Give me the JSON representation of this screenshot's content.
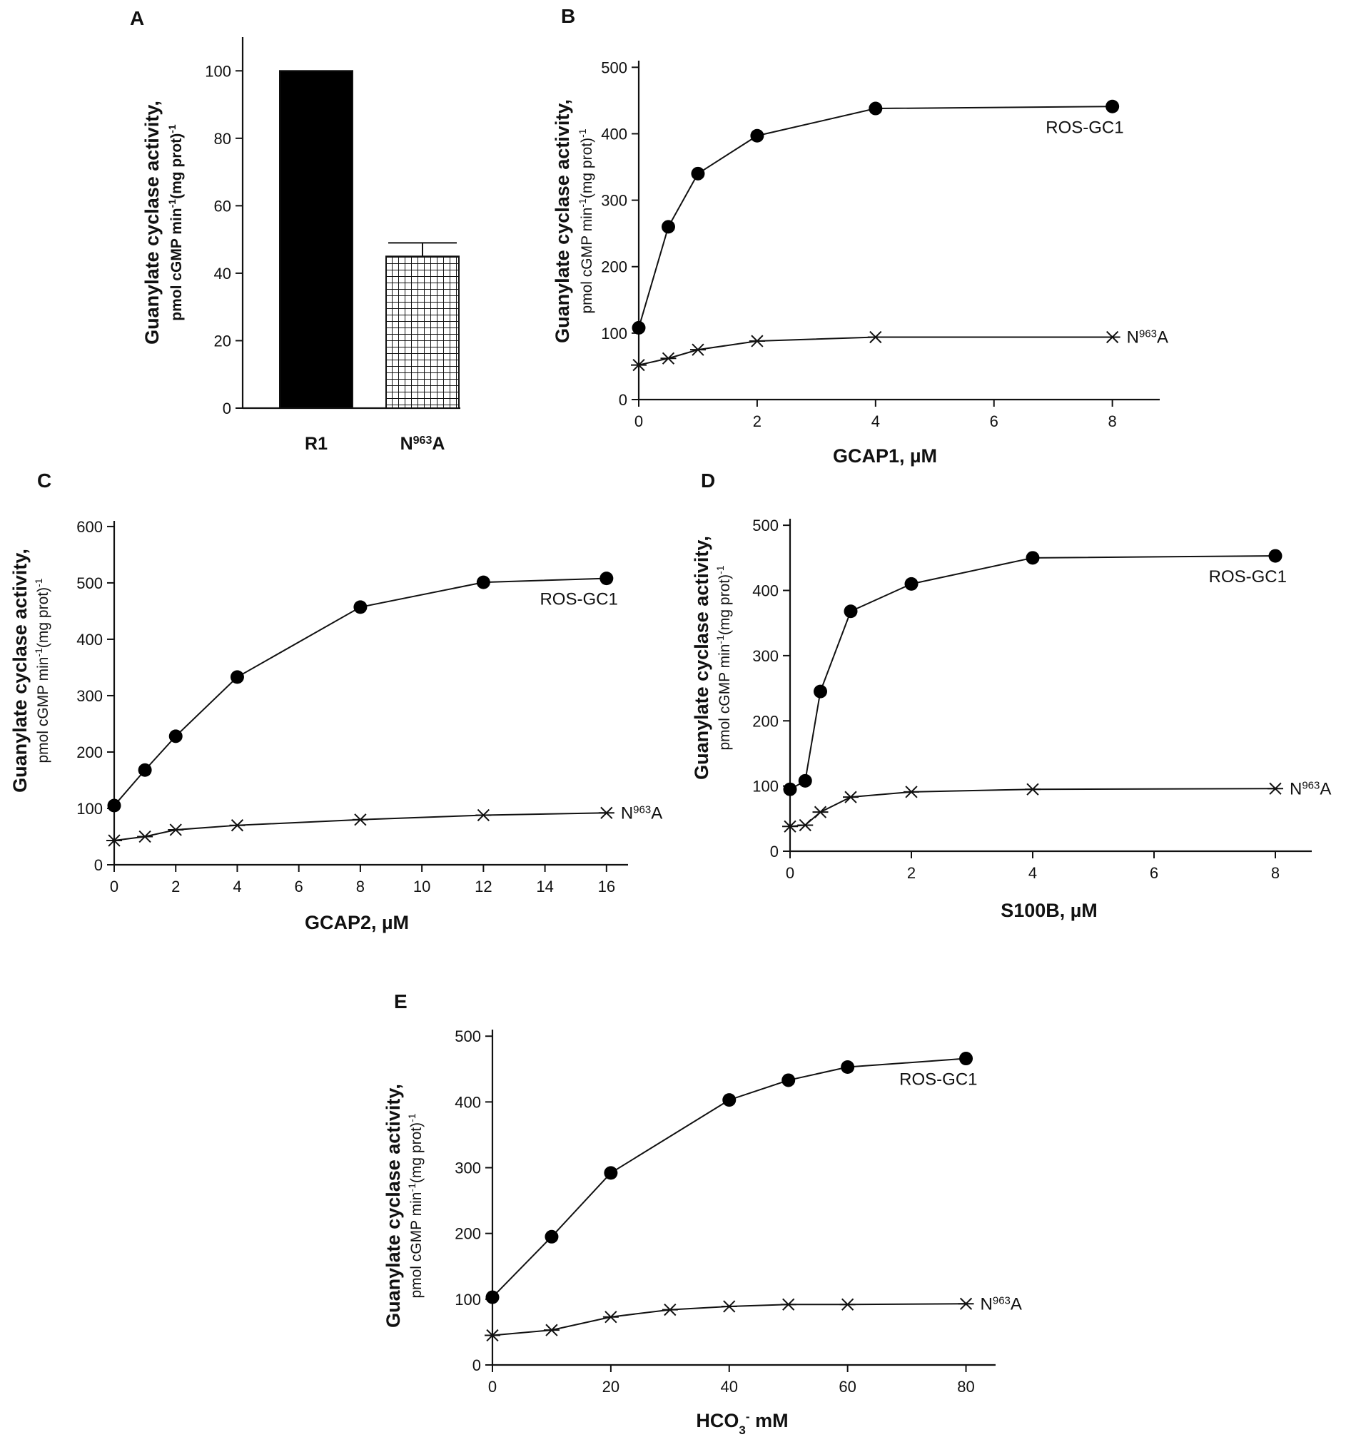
{
  "chart_data": [
    {
      "panel": "A",
      "type": "bar",
      "categories": [
        {
          "base": "R1",
          "sup": ""
        },
        {
          "base": "N",
          "sup": "963",
          "suffix": "A"
        }
      ],
      "values": [
        100,
        45
      ],
      "error_top": [
        null,
        49
      ],
      "fills": [
        "solid-black",
        "grid-hatch"
      ],
      "ylabel_line1": "Guanylate cyclase activity,",
      "ylabel_line2": "pmol cGMP min",
      "ylabel_line2_sup": "-1",
      "ylabel_line2_tail": "(mg prot)",
      "ylabel_line2_tail_sup": "-1",
      "ylim": [
        0,
        110
      ],
      "yticks": [
        0,
        20,
        40,
        60,
        80,
        100
      ],
      "xlabel": ""
    },
    {
      "panel": "B",
      "type": "line",
      "ylabel_line1": "Guanylate cyclase activity,",
      "ylabel_line2": "pmol cGMP min",
      "ylabel_line2_sup": "-1",
      "ylabel_line2_tail": "(mg prot)",
      "ylabel_line2_tail_sup": "-1",
      "xlabel": "GCAP1, µM",
      "xlim": [
        0,
        8.8
      ],
      "ylim": [
        0,
        510
      ],
      "xticks": [
        0,
        2,
        4,
        6,
        8
      ],
      "yticks": [
        0,
        100,
        200,
        300,
        400,
        500
      ],
      "series": [
        {
          "name": "ROS-GC1",
          "marker": "filled-circle",
          "x": [
            0,
            0.5,
            1,
            2,
            4,
            8
          ],
          "y": [
            108,
            260,
            340,
            397,
            438,
            441
          ]
        },
        {
          "name": "N",
          "name_sup": "963",
          "name_suffix": "A",
          "marker": "asterisk",
          "x": [
            0,
            0.5,
            1,
            2,
            4,
            8
          ],
          "y": [
            52,
            62,
            75,
            88,
            94,
            94
          ]
        }
      ]
    },
    {
      "panel": "C",
      "type": "line",
      "ylabel_line1": "Guanylate cyclase activity,",
      "ylabel_line2": "pmol cGMP min",
      "ylabel_line2_sup": "-1",
      "ylabel_line2_tail": "(mg prot)",
      "ylabel_line2_tail_sup": "-1",
      "xlabel": "GCAP2, µM",
      "xlim": [
        0,
        16.7
      ],
      "ylim": [
        0,
        610
      ],
      "xticks": [
        0,
        2,
        4,
        6,
        8,
        10,
        12,
        14,
        16
      ],
      "yticks": [
        0,
        100,
        200,
        300,
        400,
        500,
        600
      ],
      "series": [
        {
          "name": "ROS-GC1",
          "marker": "filled-circle",
          "x": [
            0,
            1,
            2,
            4,
            8,
            12,
            16
          ],
          "y": [
            105,
            168,
            228,
            333,
            457,
            501,
            508
          ]
        },
        {
          "name": "N",
          "name_sup": "963",
          "name_suffix": "A",
          "marker": "asterisk",
          "x": [
            0,
            1,
            2,
            4,
            8,
            12,
            16
          ],
          "y": [
            43,
            50,
            62,
            70,
            80,
            88,
            92
          ]
        }
      ]
    },
    {
      "panel": "D",
      "type": "line",
      "ylabel_line1": "Guanylate cyclase activity,",
      "ylabel_line2": "pmol cGMP min",
      "ylabel_line2_sup": "-1",
      "ylabel_line2_tail": "(mg prot)",
      "ylabel_line2_tail_sup": "-1",
      "xlabel": "S100B, µM",
      "xlim": [
        0,
        8.6
      ],
      "ylim": [
        0,
        510
      ],
      "xticks": [
        0,
        2,
        4,
        6,
        8
      ],
      "yticks": [
        0,
        100,
        200,
        300,
        400,
        500
      ],
      "series": [
        {
          "name": "ROS-GC1",
          "marker": "filled-circle",
          "x": [
            0,
            0.25,
            0.5,
            1,
            2,
            4,
            8
          ],
          "y": [
            95,
            108,
            245,
            368,
            410,
            450,
            453
          ]
        },
        {
          "name": "N",
          "name_sup": "963",
          "name_suffix": "A",
          "marker": "asterisk",
          "x": [
            0,
            0.25,
            0.5,
            1,
            2,
            4,
            8
          ],
          "y": [
            38,
            40,
            60,
            83,
            91,
            95,
            96
          ]
        }
      ]
    },
    {
      "panel": "E",
      "type": "line",
      "ylabel_line1": "Guanylate cyclase activity,",
      "ylabel_line2": "pmol cGMP min",
      "ylabel_line2_sup": "-1",
      "ylabel_line2_tail": "(mg prot)",
      "ylabel_line2_tail_sup": "-1",
      "xlabel": "HCO",
      "xlabel_sub": "3",
      "xlabel_sup": "-",
      "xlabel_tail": " mM",
      "xlim": [
        0,
        85
      ],
      "ylim": [
        0,
        510
      ],
      "xticks": [
        0,
        20,
        40,
        60,
        80
      ],
      "yticks": [
        0,
        100,
        200,
        300,
        400,
        500
      ],
      "series": [
        {
          "name": "ROS-GC1",
          "marker": "filled-circle",
          "x": [
            0,
            10,
            20,
            40,
            50,
            60,
            80
          ],
          "y": [
            103,
            195,
            292,
            403,
            433,
            453,
            466
          ]
        },
        {
          "name": "N",
          "name_sup": "963",
          "name_suffix": "A",
          "marker": "asterisk",
          "x": [
            0,
            10,
            20,
            30,
            40,
            50,
            60,
            80
          ],
          "y": [
            45,
            53,
            73,
            84,
            89,
            92,
            92,
            93
          ]
        }
      ]
    }
  ]
}
